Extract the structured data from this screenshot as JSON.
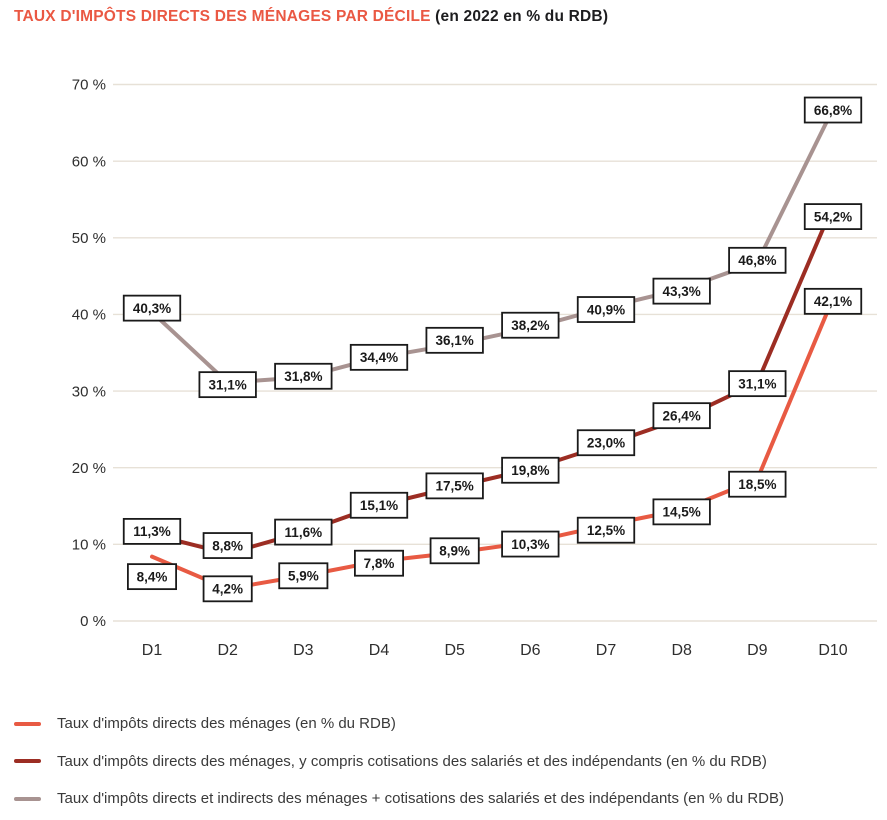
{
  "title": {
    "main": "TAUX D'IMPÔTS DIRECTS DES MÉNAGES PAR DÉCILE",
    "suffix": " (en 2022 en % du RDB)"
  },
  "colors": {
    "accent_orange": "#ea5843",
    "dark_red": "#9c2d23",
    "taupe_gray": "#a89391",
    "gridline": "#e7e1d7",
    "axis_text": "#2e2e2e",
    "label_box_border": "#1a1a1a",
    "label_box_fill": "#ffffff"
  },
  "chart_data": {
    "type": "line",
    "title": "TAUX D'IMPÔTS DIRECTS DES MÉNAGES PAR DÉCILE (en 2022 en % du RDB)",
    "categories": [
      "D1",
      "D2",
      "D3",
      "D4",
      "D5",
      "D6",
      "D7",
      "D8",
      "D9",
      "D10"
    ],
    "xlabel": "",
    "ylabel": "",
    "ylim": [
      0,
      70
    ],
    "grid": true,
    "legend_position": "bottom-left",
    "y_tick_values": [
      70,
      60,
      50,
      40,
      30,
      20,
      10,
      0
    ],
    "y_tick_labels": [
      "70 %",
      "60 %",
      "50 %",
      "40 %",
      "30 %",
      "20 %",
      "10 %",
      "0 %"
    ],
    "series": [
      {
        "name": "Taux d'impôts directs des ménages (en % du RDB)",
        "color": "#e85a43",
        "values": [
          8.4,
          4.2,
          5.9,
          7.8,
          8.9,
          10.3,
          12.5,
          14.5,
          18.5,
          42.1
        ],
        "labels": [
          "8,4%",
          "4,2%",
          "5,9%",
          "7,8%",
          "8,9%",
          "10,3%",
          "12,5%",
          "14,5%",
          "18,5%",
          "42,1%"
        ],
        "label_dy": [
          20,
          0,
          0,
          2,
          -2,
          2,
          5,
          2,
          5,
          3
        ]
      },
      {
        "name": "Taux d'impôts directs des ménages, y compris cotisations des salariés et des indépendants (en % du RDB)",
        "color": "#9c2d23",
        "values": [
          11.3,
          8.8,
          11.6,
          15.1,
          17.5,
          19.8,
          23.0,
          26.4,
          31.1,
          54.2
        ],
        "labels": [
          "11,3%",
          "8,8%",
          "11,6%",
          "15,1%",
          "17,5%",
          "19,8%",
          "23,0%",
          "26,4%",
          "31,1%",
          "54,2%"
        ],
        "label_dy": [
          -3,
          -8,
          0,
          0,
          -1,
          1,
          -2,
          -3,
          1,
          11
        ]
      },
      {
        "name": "Taux d'impôts directs et indirects des ménages + cotisations des salariés et des indépendants (en % du RDB)",
        "color": "#a89391",
        "values": [
          40.3,
          31.1,
          31.8,
          34.4,
          36.1,
          38.2,
          40.9,
          43.3,
          46.8,
          66.8
        ],
        "labels": [
          "40,3%",
          "31,1%",
          "31,8%",
          "34,4%",
          "36,1%",
          "38,2%",
          "40,9%",
          "43,3%",
          "46,8%",
          "66,8%"
        ],
        "label_dy": [
          -4,
          2,
          -1,
          0,
          -4,
          -3,
          2,
          2,
          -2,
          1
        ]
      }
    ]
  }
}
